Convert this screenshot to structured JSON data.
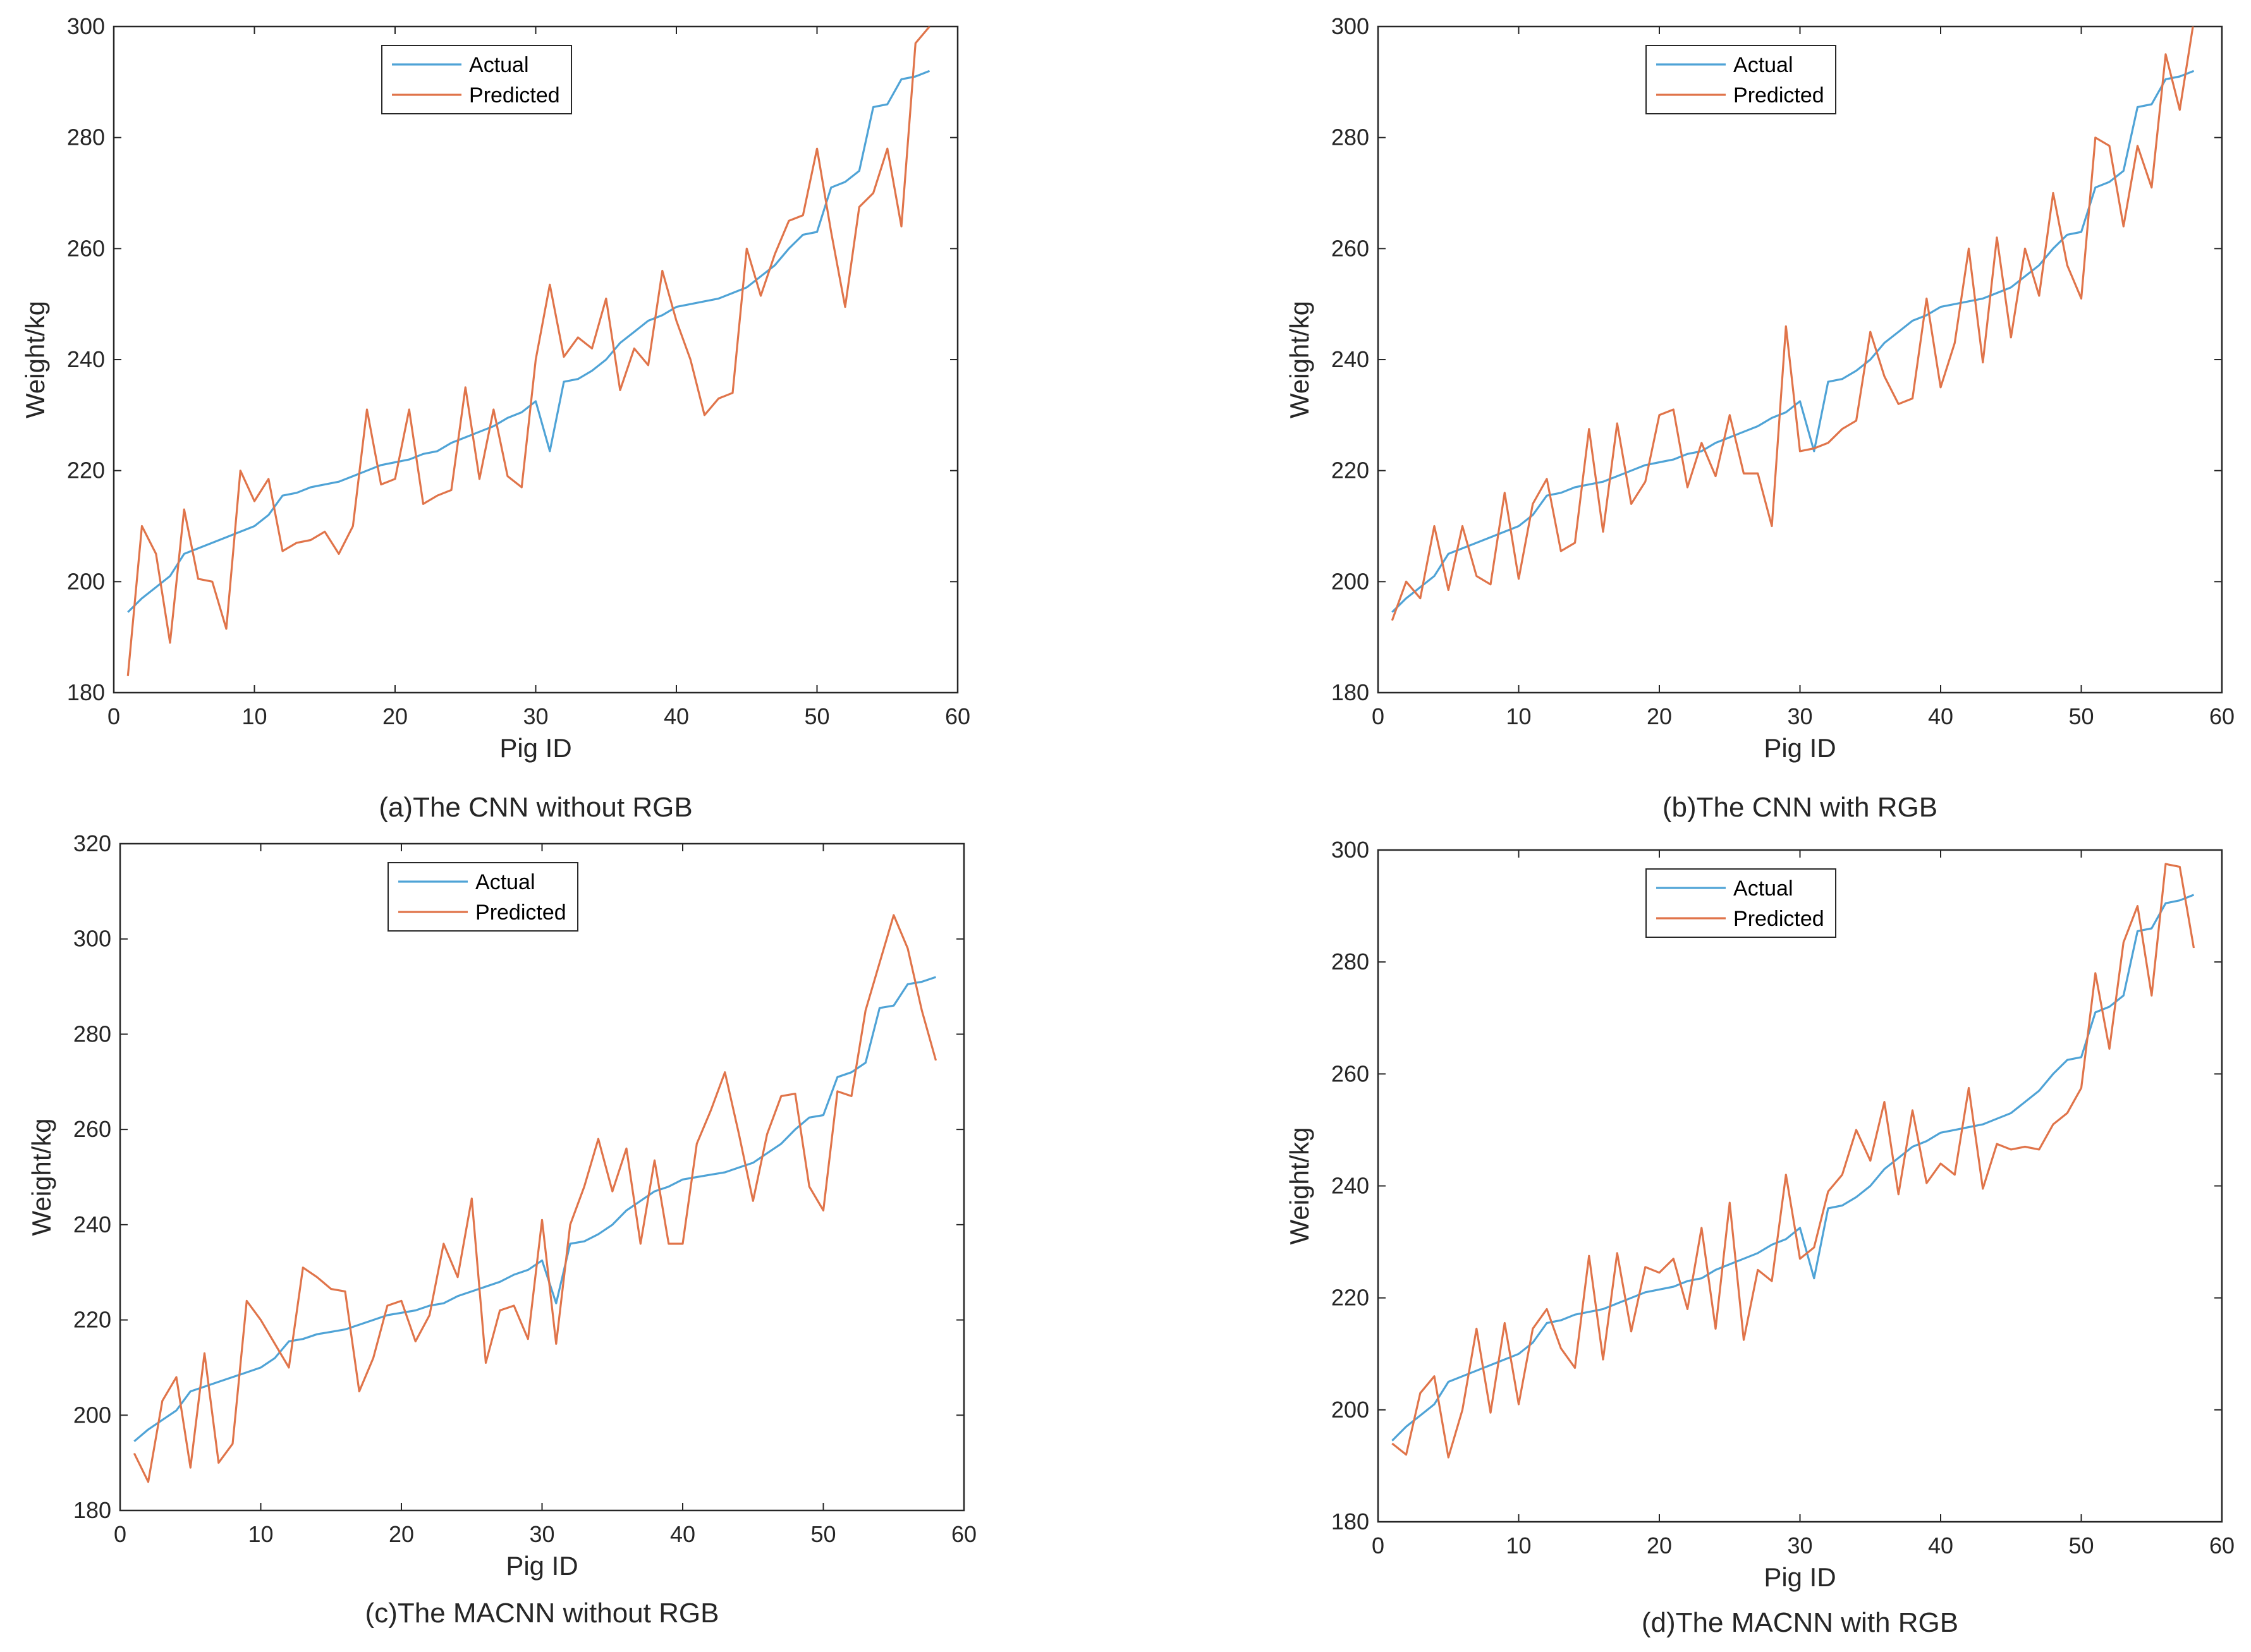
{
  "colors": {
    "actual": "#4fa3d6",
    "predicted": "#e0744a",
    "axis": "#262626"
  },
  "chart_data": [
    {
      "id": "a",
      "type": "line",
      "caption": "(a)The CNN without RGB",
      "xlabel": "Pig ID",
      "ylabel": "Weight/kg",
      "xlim": [
        0,
        60
      ],
      "ylim": [
        180,
        300
      ],
      "xticks": [
        "0",
        "10",
        "20",
        "30",
        "40",
        "50",
        "60"
      ],
      "yticks": [
        "180",
        "200",
        "220",
        "240",
        "260",
        "280",
        "300"
      ],
      "legend": "top-center",
      "x": [
        1,
        2,
        3,
        4,
        5,
        6,
        7,
        8,
        9,
        10,
        11,
        12,
        13,
        14,
        15,
        16,
        17,
        18,
        19,
        20,
        21,
        22,
        23,
        24,
        25,
        26,
        27,
        28,
        29,
        30,
        31,
        32,
        33,
        34,
        35,
        36,
        37,
        38,
        39,
        40,
        41,
        42,
        43,
        44,
        45,
        46,
        47,
        48,
        49,
        50,
        51,
        52,
        53,
        54,
        55,
        56,
        57,
        58
      ],
      "series": [
        {
          "name": "Actual",
          "values": [
            194.5,
            197,
            199,
            201,
            205,
            206,
            207,
            208,
            209,
            210,
            212,
            215.5,
            216,
            217,
            217.5,
            218,
            219,
            220,
            221,
            221.5,
            222,
            223,
            223.5,
            225,
            226,
            227,
            228,
            229.5,
            230.5,
            232.5,
            223.5,
            236,
            236.5,
            238,
            240,
            243,
            245,
            247,
            248,
            249.5,
            250,
            250.5,
            251,
            252,
            253,
            255,
            257,
            260,
            262.5,
            263,
            271,
            272,
            274,
            285.5,
            286,
            290.5,
            291,
            292
          ]
        },
        {
          "name": "Predicted",
          "values": [
            183,
            210,
            205,
            189,
            213,
            200.5,
            200,
            191.5,
            220,
            214.5,
            218.5,
            205.5,
            207,
            207.5,
            209,
            205,
            210,
            231,
            217.5,
            218.5,
            231,
            214,
            215.5,
            216.5,
            235,
            218.5,
            231,
            219,
            217,
            240,
            253.5,
            240.5,
            244,
            242,
            251,
            234.5,
            242,
            239,
            256,
            247,
            240,
            230,
            233,
            234,
            260,
            251.5,
            259,
            265,
            266,
            278,
            263,
            249.5,
            267.5,
            270,
            278,
            264,
            297,
            300
          ]
        }
      ]
    },
    {
      "id": "b",
      "type": "line",
      "caption": "(b)The CNN with RGB",
      "xlabel": "Pig ID",
      "ylabel": "Weight/kg",
      "xlim": [
        0,
        60
      ],
      "ylim": [
        180,
        300
      ],
      "xticks": [
        "0",
        "10",
        "20",
        "30",
        "40",
        "50",
        "60"
      ],
      "yticks": [
        "180",
        "200",
        "220",
        "240",
        "260",
        "280",
        "300"
      ],
      "legend": "top-center",
      "x": [
        1,
        2,
        3,
        4,
        5,
        6,
        7,
        8,
        9,
        10,
        11,
        12,
        13,
        14,
        15,
        16,
        17,
        18,
        19,
        20,
        21,
        22,
        23,
        24,
        25,
        26,
        27,
        28,
        29,
        30,
        31,
        32,
        33,
        34,
        35,
        36,
        37,
        38,
        39,
        40,
        41,
        42,
        43,
        44,
        45,
        46,
        47,
        48,
        49,
        50,
        51,
        52,
        53,
        54,
        55,
        56,
        57,
        58
      ],
      "series": [
        {
          "name": "Actual",
          "values": [
            194.5,
            197,
            199,
            201,
            205,
            206,
            207,
            208,
            209,
            210,
            212,
            215.5,
            216,
            217,
            217.5,
            218,
            219,
            220,
            221,
            221.5,
            222,
            223,
            223.5,
            225,
            226,
            227,
            228,
            229.5,
            230.5,
            232.5,
            223.5,
            236,
            236.5,
            238,
            240,
            243,
            245,
            247,
            248,
            249.5,
            250,
            250.5,
            251,
            252,
            253,
            255,
            257,
            260,
            262.5,
            263,
            271,
            272,
            274,
            285.5,
            286,
            290.5,
            291,
            292
          ]
        },
        {
          "name": "Predicted",
          "values": [
            193,
            200,
            197,
            210,
            198.5,
            210,
            201,
            199.5,
            216,
            200.5,
            214,
            218.5,
            205.5,
            207,
            227.5,
            209,
            228.5,
            214,
            218,
            230,
            231,
            217,
            225,
            219,
            230,
            219.5,
            219.5,
            210,
            246,
            223.5,
            224,
            225,
            227.5,
            229,
            245,
            237,
            232,
            233,
            251,
            235,
            243,
            260,
            239.5,
            262,
            244,
            260,
            251.5,
            270,
            257,
            251,
            280,
            278.5,
            264,
            278.5,
            271,
            295,
            285,
            301
          ]
        }
      ]
    },
    {
      "id": "c",
      "type": "line",
      "caption": "(c)The MACNN without RGB",
      "xlabel": "Pig ID",
      "ylabel": "Weight/kg",
      "xlim": [
        0,
        60
      ],
      "ylim": [
        180,
        320
      ],
      "xticks": [
        "0",
        "10",
        "20",
        "30",
        "40",
        "50",
        "60"
      ],
      "yticks": [
        "180",
        "200",
        "220",
        "240",
        "260",
        "280",
        "300",
        "320"
      ],
      "legend": "top-center",
      "x": [
        1,
        2,
        3,
        4,
        5,
        6,
        7,
        8,
        9,
        10,
        11,
        12,
        13,
        14,
        15,
        16,
        17,
        18,
        19,
        20,
        21,
        22,
        23,
        24,
        25,
        26,
        27,
        28,
        29,
        30,
        31,
        32,
        33,
        34,
        35,
        36,
        37,
        38,
        39,
        40,
        41,
        42,
        43,
        44,
        45,
        46,
        47,
        48,
        49,
        50,
        51,
        52,
        53,
        54,
        55,
        56,
        57,
        58
      ],
      "series": [
        {
          "name": "Actual",
          "values": [
            194.5,
            197,
            199,
            201,
            205,
            206,
            207,
            208,
            209,
            210,
            212,
            215.5,
            216,
            217,
            217.5,
            218,
            219,
            220,
            221,
            221.5,
            222,
            223,
            223.5,
            225,
            226,
            227,
            228,
            229.5,
            230.5,
            232.5,
            223.5,
            236,
            236.5,
            238,
            240,
            243,
            245,
            247,
            248,
            249.5,
            250,
            250.5,
            251,
            252,
            253,
            255,
            257,
            260,
            262.5,
            263,
            271,
            272,
            274,
            285.5,
            286,
            290.5,
            291,
            292
          ]
        },
        {
          "name": "Predicted",
          "values": [
            192,
            186,
            203,
            208,
            189,
            213,
            190,
            194,
            224,
            220,
            215,
            210,
            231,
            229,
            226.5,
            226,
            205,
            212,
            223,
            224,
            215.5,
            221,
            236,
            229,
            245.5,
            211,
            222,
            223,
            216,
            241,
            215,
            240,
            248,
            258,
            247,
            256,
            236,
            253.5,
            236,
            236,
            257,
            264,
            272,
            259,
            245,
            259,
            267,
            267.5,
            248,
            243,
            268,
            267,
            285,
            295,
            305,
            298,
            285,
            274.5
          ]
        }
      ]
    },
    {
      "id": "d",
      "type": "line",
      "caption": "(d)The MACNN with RGB",
      "xlabel": "Pig ID",
      "ylabel": "Weight/kg",
      "xlim": [
        0,
        60
      ],
      "ylim": [
        180,
        300
      ],
      "xticks": [
        "0",
        "10",
        "20",
        "30",
        "40",
        "50",
        "60"
      ],
      "yticks": [
        "180",
        "200",
        "220",
        "240",
        "260",
        "280",
        "300"
      ],
      "legend": "top-center",
      "x": [
        1,
        2,
        3,
        4,
        5,
        6,
        7,
        8,
        9,
        10,
        11,
        12,
        13,
        14,
        15,
        16,
        17,
        18,
        19,
        20,
        21,
        22,
        23,
        24,
        25,
        26,
        27,
        28,
        29,
        30,
        31,
        32,
        33,
        34,
        35,
        36,
        37,
        38,
        39,
        40,
        41,
        42,
        43,
        44,
        45,
        46,
        47,
        48,
        49,
        50,
        51,
        52,
        53,
        54,
        55,
        56,
        57,
        58
      ],
      "series": [
        {
          "name": "Actual",
          "values": [
            194.5,
            197,
            199,
            201,
            205,
            206,
            207,
            208,
            209,
            210,
            212,
            215.5,
            216,
            217,
            217.5,
            218,
            219,
            220,
            221,
            221.5,
            222,
            223,
            223.5,
            225,
            226,
            227,
            228,
            229.5,
            230.5,
            232.5,
            223.5,
            236,
            236.5,
            238,
            240,
            243,
            245,
            247,
            248,
            249.5,
            250,
            250.5,
            251,
            252,
            253,
            255,
            257,
            260,
            262.5,
            263,
            271,
            272,
            274,
            285.5,
            286,
            290.5,
            291,
            292
          ]
        },
        {
          "name": "Predicted",
          "values": [
            194,
            192,
            203,
            206,
            191.5,
            200,
            214.5,
            199.5,
            215.5,
            201,
            214.5,
            218,
            211,
            207.5,
            227.5,
            209,
            228,
            214,
            225.5,
            224.5,
            227,
            218,
            232.5,
            214.5,
            237,
            212.5,
            225,
            223,
            242,
            227,
            229,
            239,
            242,
            250,
            244.5,
            255,
            238.5,
            253.5,
            240.5,
            244,
            242,
            257.5,
            239.5,
            247.5,
            246.5,
            247,
            246.5,
            251,
            253,
            257.5,
            278,
            264.5,
            283.5,
            290,
            274,
            297.5,
            297,
            282.5
          ]
        }
      ]
    }
  ]
}
